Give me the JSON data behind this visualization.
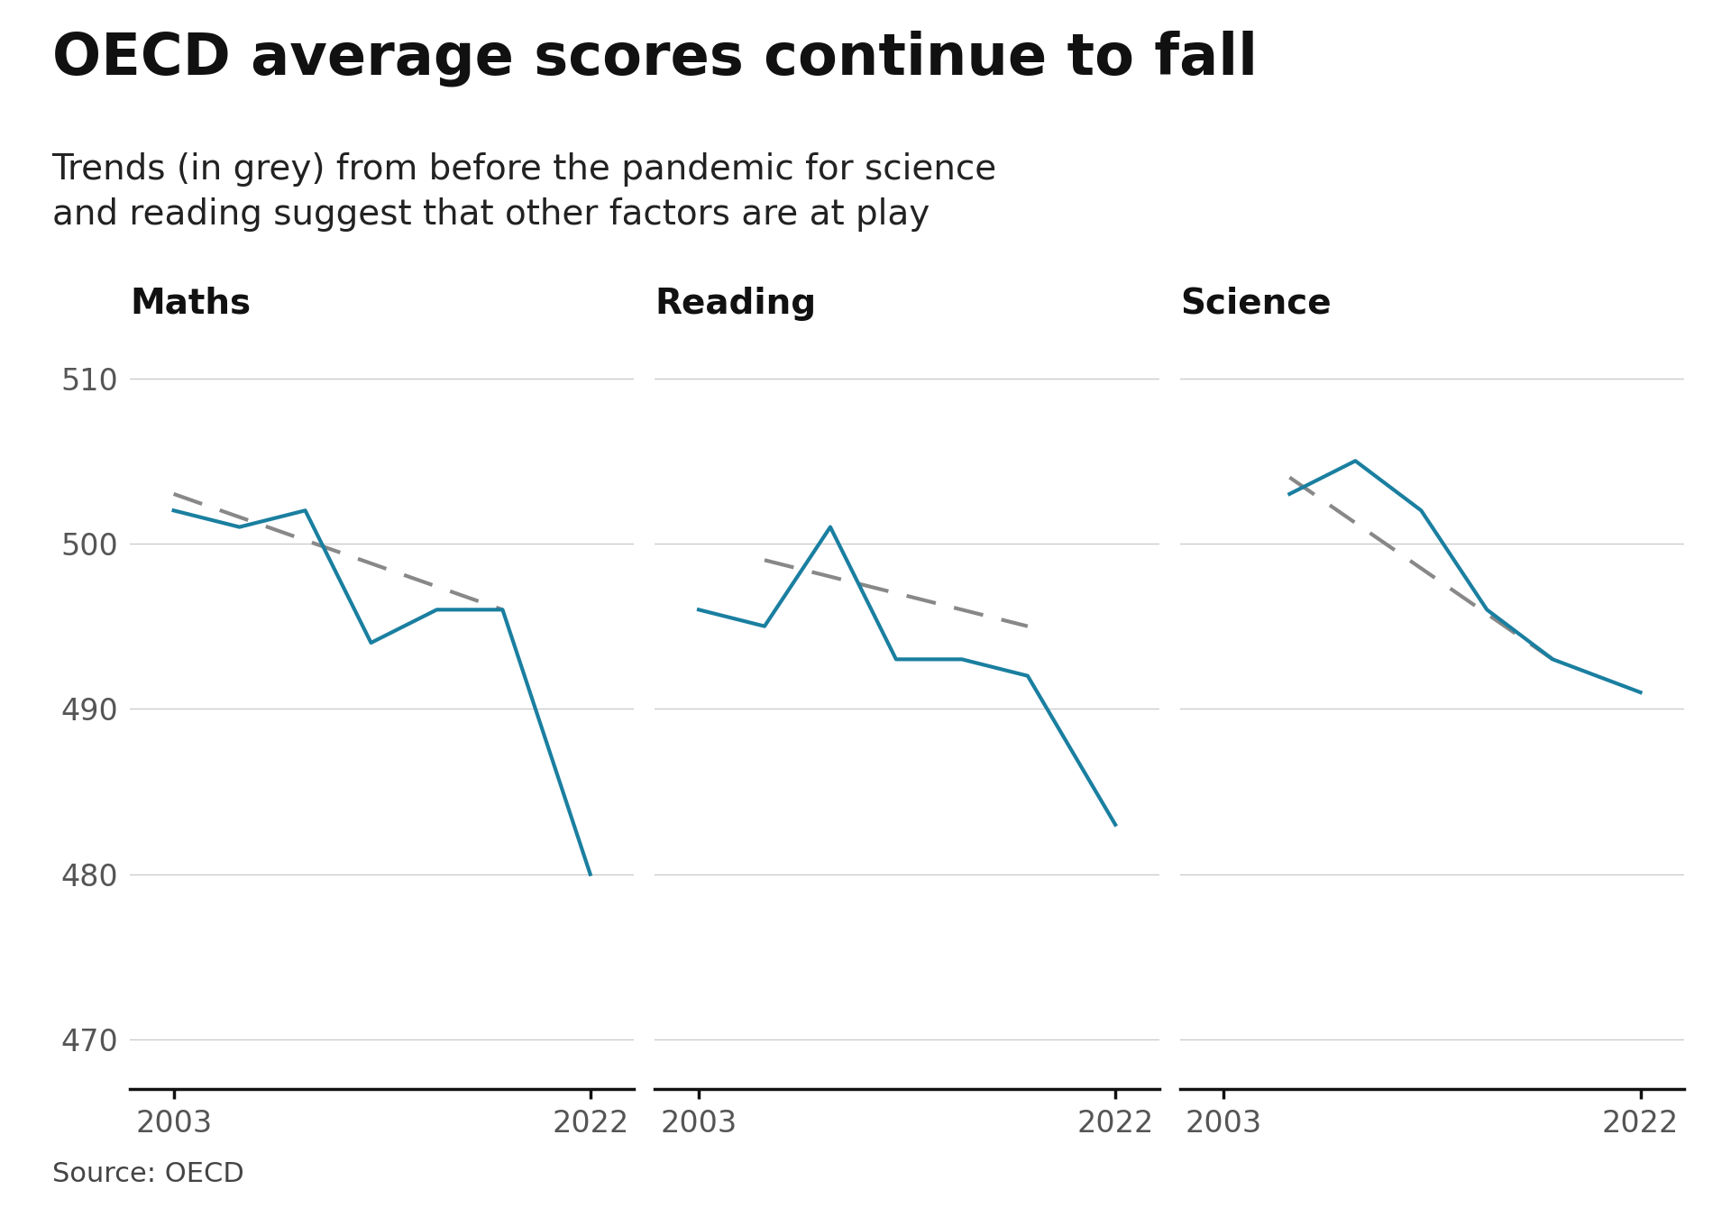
{
  "title": "OECD average scores continue to fall",
  "subtitle": "Trends (in grey) from before the pandemic for science\nand reading suggest that other factors are at play",
  "source": "Source: OECD",
  "panels": [
    {
      "label": "Maths",
      "actual_x": [
        2003,
        2006,
        2009,
        2012,
        2015,
        2018,
        2022
      ],
      "actual_y": [
        502,
        501,
        502,
        494,
        496,
        496,
        480
      ],
      "trend_x": [
        2003,
        2018
      ],
      "trend_y": [
        503,
        496
      ]
    },
    {
      "label": "Reading",
      "actual_x": [
        2003,
        2006,
        2009,
        2012,
        2015,
        2018,
        2022
      ],
      "actual_y": [
        496,
        495,
        501,
        493,
        493,
        492,
        483
      ],
      "trend_x": [
        2006,
        2018
      ],
      "trend_y": [
        499,
        495
      ]
    },
    {
      "label": "Science",
      "actual_x": [
        2006,
        2009,
        2012,
        2015,
        2018,
        2022
      ],
      "actual_y": [
        503,
        505,
        502,
        496,
        493,
        491
      ],
      "trend_x": [
        2006,
        2018
      ],
      "trend_y": [
        504,
        493
      ]
    }
  ],
  "ylim": [
    467,
    513
  ],
  "yticks": [
    470,
    480,
    490,
    500,
    510
  ],
  "xlim": [
    2001,
    2024
  ],
  "line_color": "#1a7fa0",
  "trend_color": "#888888",
  "grid_color": "#cccccc",
  "axis_color": "#555555",
  "tick_label_color": "#555555",
  "bg_color": "#ffffff",
  "title_fontsize": 46,
  "subtitle_fontsize": 28,
  "panel_label_fontsize": 28,
  "tick_fontsize": 24,
  "source_fontsize": 22
}
